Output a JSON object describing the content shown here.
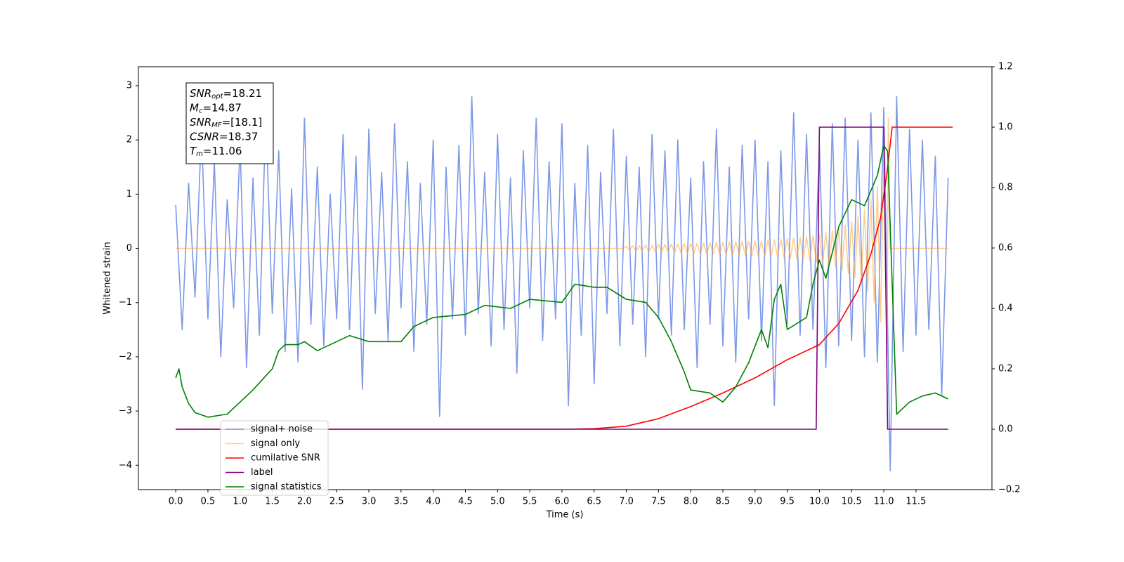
{
  "chart_data": {
    "type": "line",
    "xlabel": "Time (s)",
    "ylabel": "Whitened strain",
    "xlim": [
      -0.58,
      12.68
    ],
    "ylim": [
      -4.45,
      3.35
    ],
    "y2lim": [
      -0.2,
      1.2
    ],
    "xticks": [
      {
        "value": 0,
        "label": "0.0"
      },
      0.5,
      {
        "value": 1,
        "label": "1.0"
      },
      1.5,
      {
        "value": 2,
        "label": "2.0"
      },
      2.5,
      {
        "value": 3,
        "label": "3.0"
      },
      3.5,
      {
        "value": 4,
        "label": "4.0"
      },
      4.5,
      {
        "value": 5,
        "label": "5.0"
      },
      5.5,
      {
        "value": 6,
        "label": "6.0"
      },
      6.5,
      {
        "value": 7,
        "label": "7.0"
      },
      7.5,
      {
        "value": 8,
        "label": "8.0"
      },
      8.5,
      {
        "value": 9,
        "label": "9.0"
      },
      9.5,
      {
        "value": 10,
        "label": "10.0"
      },
      10.5,
      {
        "value": 11,
        "label": "11.0"
      },
      11.5
    ],
    "yticks": [
      {
        "value": -4,
        "label": "−4"
      },
      {
        "value": -3,
        "label": "−3"
      },
      {
        "value": -2,
        "label": "−2"
      },
      {
        "value": -1,
        "label": "−1"
      },
      0,
      1,
      2,
      3
    ],
    "y2ticks": [
      {
        "value": -0.2,
        "label": "−0.2"
      },
      {
        "value": 0,
        "label": "0.0"
      },
      0.2,
      0.4,
      0.6,
      0.8,
      {
        "value": 1,
        "label": "1.0"
      },
      1.2
    ],
    "legend": "lower left",
    "stats": [
      {
        "label": "SNR",
        "sub": "opt",
        "text": "=18.21"
      },
      {
        "label": "M",
        "sub": "c",
        "text": "=14.87"
      },
      {
        "label": "SNR",
        "sub": "MF",
        "text": "=[18.1]"
      },
      {
        "label": "CSNR",
        "text": "=18.37"
      },
      {
        "label": "T",
        "sub": "m",
        "text": "=11.06"
      }
    ],
    "series": [
      {
        "name": "signal+ noise",
        "color": "#7592e6",
        "x": [
          0,
          0.1,
          0.2,
          0.3,
          0.4,
          0.5,
          0.6,
          0.7,
          0.8,
          0.9,
          1,
          1.1,
          1.2,
          1.3,
          1.4,
          1.5,
          1.6,
          1.7,
          1.8,
          1.9,
          2,
          2.1,
          2.2,
          2.3,
          2.4,
          2.5,
          2.6,
          2.7,
          2.8,
          2.9,
          3,
          3.1,
          3.2,
          3.3,
          3.4,
          3.5,
          3.6,
          3.7,
          3.8,
          3.9,
          4,
          4.1,
          4.2,
          4.3,
          4.4,
          4.5,
          4.6,
          4.7,
          4.8,
          4.9,
          5,
          5.1,
          5.2,
          5.3,
          5.4,
          5.5,
          5.6,
          5.7,
          5.8,
          5.9,
          6,
          6.1,
          6.2,
          6.3,
          6.4,
          6.5,
          6.6,
          6.7,
          6.8,
          6.9,
          7,
          7.1,
          7.2,
          7.3,
          7.4,
          7.5,
          7.6,
          7.7,
          7.8,
          7.9,
          8,
          8.1,
          8.2,
          8.3,
          8.4,
          8.5,
          8.6,
          8.7,
          8.8,
          8.9,
          9,
          9.1,
          9.2,
          9.3,
          9.4,
          9.5,
          9.6,
          9.7,
          9.8,
          9.9,
          10,
          10.1,
          10.2,
          10.3,
          10.4,
          10.5,
          10.6,
          10.7,
          10.8,
          10.9,
          11,
          11.1,
          11.2,
          11.3,
          11.4,
          11.5,
          11.6,
          11.7,
          11.8,
          11.9,
          12
        ],
        "values": [
          0.8,
          -1.5,
          1.2,
          -0.9,
          2.2,
          -1.3,
          1.6,
          -2.0,
          0.9,
          -1.1,
          1.9,
          -2.2,
          1.3,
          -1.6,
          2.5,
          -1.2,
          1.8,
          -1.9,
          1.1,
          -2.1,
          2.4,
          -1.4,
          1.5,
          -1.8,
          1.0,
          -1.3,
          2.1,
          -1.5,
          1.7,
          -2.6,
          2.2,
          -1.2,
          1.4,
          -1.7,
          2.3,
          -1.1,
          1.6,
          -1.9,
          1.2,
          -1.4,
          2.0,
          -3.1,
          1.5,
          -1.3,
          1.9,
          -1.6,
          2.8,
          -1.2,
          1.4,
          -1.8,
          2.1,
          -1.5,
          1.3,
          -2.3,
          1.8,
          -1.1,
          2.4,
          -1.7,
          1.6,
          -1.3,
          2.3,
          -2.9,
          1.2,
          -1.6,
          1.9,
          -2.5,
          1.4,
          -1.2,
          2.2,
          -1.8,
          1.7,
          -1.4,
          1.5,
          -2.0,
          2.1,
          -1.3,
          1.8,
          -1.6,
          2.0,
          -1.5,
          1.3,
          -2.2,
          1.6,
          -1.4,
          2.2,
          -1.8,
          1.5,
          -2.1,
          1.9,
          -1.3,
          2.0,
          -1.7,
          1.6,
          -2.9,
          1.8,
          -1.4,
          2.5,
          -1.6,
          2.1,
          -1.5,
          1.9,
          -2.2,
          2.3,
          -1.8,
          2.4,
          -1.7,
          2.0,
          -2.0,
          2.5,
          -2.1,
          2.6,
          -4.1,
          2.8,
          -1.9,
          2.2,
          -1.6,
          2.0,
          -1.5,
          1.7,
          -2.7,
          1.3
        ]
      },
      {
        "name": "signal only",
        "color": "#ffa530",
        "x": [
          0,
          6.95,
          7,
          7.05,
          7.1,
          7.15,
          7.2,
          7.25,
          7.3,
          7.35,
          7.4,
          7.45,
          7.5,
          7.55,
          7.6,
          7.65,
          7.7,
          7.75,
          7.8,
          7.85,
          7.9,
          7.95,
          8,
          8.05,
          8.1,
          8.15,
          8.2,
          8.25,
          8.3,
          8.35,
          8.4,
          8.45,
          8.5,
          8.55,
          8.6,
          8.65,
          8.7,
          8.75,
          8.8,
          8.85,
          8.9,
          8.95,
          9,
          9.05,
          9.1,
          9.15,
          9.2,
          9.25,
          9.3,
          9.35,
          9.4,
          9.45,
          9.5,
          9.55,
          9.6,
          9.65,
          9.7,
          9.75,
          9.8,
          9.85,
          9.9,
          9.95,
          10,
          10.05,
          10.1,
          10.15,
          10.2,
          10.25,
          10.3,
          10.35,
          10.4,
          10.45,
          10.5,
          10.55,
          10.6,
          10.65,
          10.7,
          10.75,
          10.8,
          10.85,
          10.9,
          10.95,
          11,
          11.05,
          11.07,
          11.1,
          12
        ],
        "values": [
          0,
          0,
          0.04,
          -0.04,
          0.05,
          -0.05,
          0.05,
          -0.05,
          0.06,
          -0.06,
          0.06,
          -0.06,
          0.07,
          -0.07,
          0.07,
          -0.07,
          0.08,
          -0.08,
          0.08,
          -0.08,
          0.09,
          -0.09,
          0.09,
          -0.09,
          0.1,
          -0.1,
          0.1,
          -0.1,
          0.1,
          -0.1,
          0.11,
          -0.11,
          0.11,
          -0.11,
          0.12,
          -0.12,
          0.12,
          -0.12,
          0.13,
          -0.13,
          0.13,
          -0.13,
          0.14,
          -0.14,
          0.14,
          -0.15,
          0.15,
          -0.15,
          0.16,
          -0.16,
          0.17,
          -0.17,
          0.18,
          -0.18,
          0.19,
          -0.19,
          0.2,
          -0.21,
          0.22,
          -0.23,
          0.24,
          -0.25,
          0.26,
          -0.27,
          0.29,
          -0.31,
          0.33,
          -0.35,
          0.37,
          -0.4,
          0.43,
          -0.46,
          0.5,
          -0.54,
          0.59,
          -0.65,
          0.72,
          -0.8,
          0.9,
          -1.0,
          1.15,
          -1.35,
          1.7,
          -2.0,
          2.4,
          0,
          0
        ]
      },
      {
        "name": "cumilative SNR",
        "color": "#ff0000",
        "axis": "y2",
        "x": [
          0,
          6.0,
          6.5,
          7.0,
          7.5,
          8.0,
          8.5,
          9.0,
          9.5,
          10.0,
          10.3,
          10.6,
          10.8,
          10.95,
          11.05,
          11.13,
          12.07
        ],
        "values": [
          0,
          0,
          0.002,
          0.01,
          0.035,
          0.075,
          0.12,
          0.17,
          0.23,
          0.28,
          0.35,
          0.46,
          0.58,
          0.7,
          0.85,
          1.0,
          1.0
        ]
      },
      {
        "name": "label",
        "color": "#800080",
        "axis": "y2",
        "x": [
          0,
          9.95,
          10.0,
          11.0,
          11.06,
          12.0
        ],
        "values": [
          0,
          0,
          1,
          1,
          0,
          0
        ]
      },
      {
        "name": "signal statistics",
        "color": "#008000",
        "axis": "y2",
        "x": [
          0,
          0.05,
          0.1,
          0.2,
          0.3,
          0.5,
          0.8,
          1.0,
          1.2,
          1.5,
          1.6,
          1.7,
          1.9,
          2.0,
          2.2,
          2.5,
          2.7,
          3.0,
          3.5,
          3.7,
          4.0,
          4.5,
          4.8,
          5.2,
          5.5,
          6.0,
          6.2,
          6.5,
          6.7,
          7.0,
          7.3,
          7.5,
          7.7,
          7.9,
          8.0,
          8.3,
          8.5,
          8.7,
          8.9,
          9.1,
          9.2,
          9.3,
          9.4,
          9.5,
          9.8,
          9.9,
          10.0,
          10.1,
          10.3,
          10.5,
          10.7,
          10.9,
          11.0,
          11.06,
          11.2,
          11.4,
          11.6,
          11.8,
          12.0
        ],
        "values": [
          0.17,
          0.2,
          0.14,
          0.085,
          0.055,
          0.04,
          0.05,
          0.09,
          0.13,
          0.2,
          0.26,
          0.28,
          0.28,
          0.29,
          0.26,
          0.29,
          0.31,
          0.29,
          0.29,
          0.34,
          0.37,
          0.38,
          0.41,
          0.4,
          0.43,
          0.42,
          0.48,
          0.47,
          0.47,
          0.43,
          0.42,
          0.37,
          0.29,
          0.19,
          0.13,
          0.12,
          0.09,
          0.14,
          0.22,
          0.33,
          0.27,
          0.43,
          0.48,
          0.33,
          0.37,
          0.48,
          0.56,
          0.5,
          0.67,
          0.76,
          0.74,
          0.84,
          0.94,
          0.92,
          0.05,
          0.09,
          0.11,
          0.12,
          0.1
        ]
      }
    ]
  }
}
